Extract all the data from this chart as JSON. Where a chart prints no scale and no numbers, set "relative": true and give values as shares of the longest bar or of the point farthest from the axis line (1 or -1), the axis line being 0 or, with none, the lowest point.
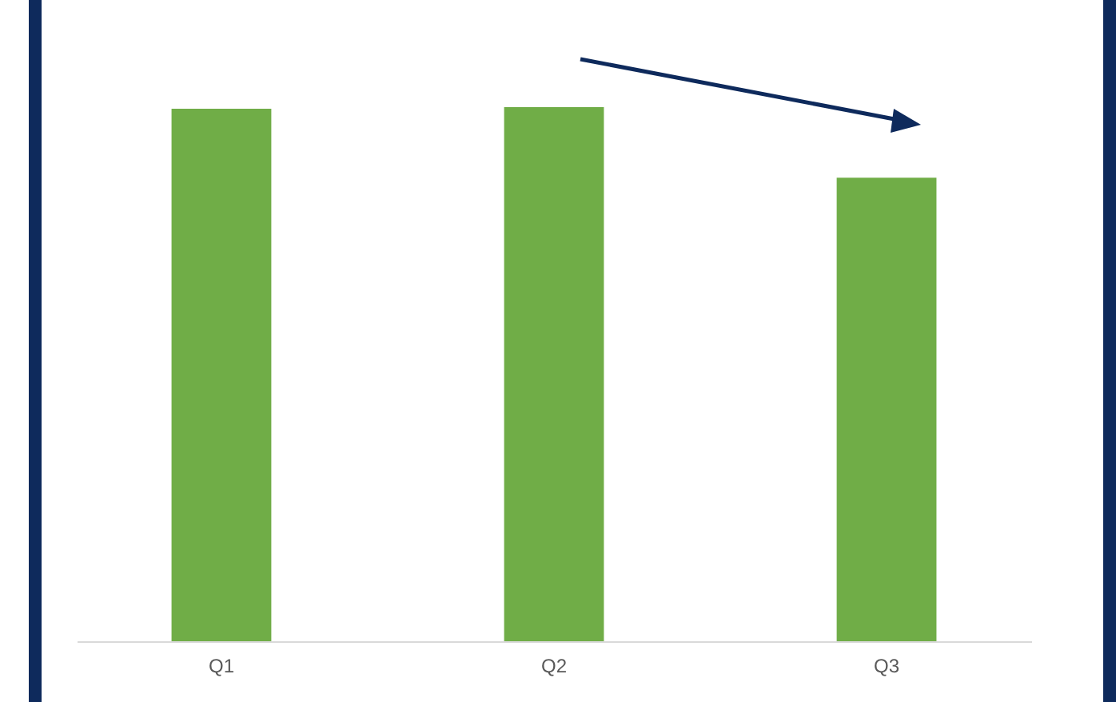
{
  "chart_data": {
    "type": "bar",
    "relative": true,
    "categories": [
      "Q1",
      "Q2",
      "Q3"
    ],
    "values": [
      0.997,
      1,
      0.868
    ],
    "color": "#70ad47",
    "grid": false
  }
}
